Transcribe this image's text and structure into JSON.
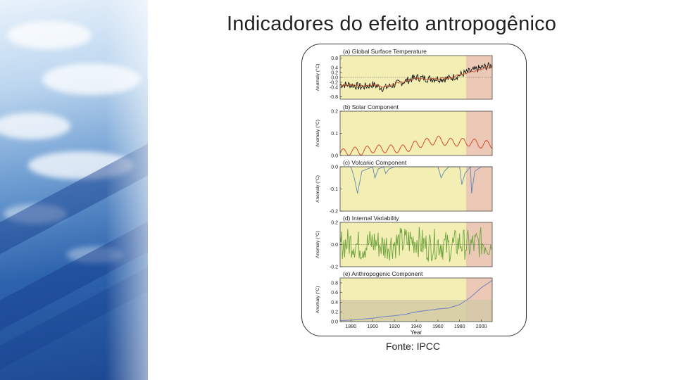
{
  "page": {
    "title": "Indicadores do efeito antropogênico",
    "source": "Fonte: IPCC"
  },
  "colors": {
    "yellow_period": "#f3eeb4",
    "pink_period": "#ecc9b6",
    "observed": "#111111",
    "temperature_fit": "#c8502f",
    "solar": "#d4583a",
    "volcanic": "#5f87b6",
    "internal": "#6da33c",
    "anthropogenic": "#7d86bf",
    "anthro_band": "#cfc7a4"
  },
  "chart_data": [
    {
      "type": "line",
      "panel": "(a) Global Surface Temperature",
      "ylabel": "Anomaly (°C)",
      "ylim": [
        -0.9,
        0.9
      ],
      "yticks": [
        0.8,
        0.4,
        0.2,
        0.0,
        -0.2,
        -0.4,
        -0.8
      ],
      "xlim": [
        1870,
        2010
      ],
      "period_split": 1986,
      "series": [
        {
          "x": [
            1870,
            1880,
            1890,
            1900,
            1910,
            1920,
            1930,
            1940,
            1950,
            1960,
            1970,
            1980,
            1990,
            2000,
            2010
          ],
          "values": [
            -0.3,
            -0.3,
            -0.4,
            -0.3,
            -0.45,
            -0.3,
            -0.15,
            0.0,
            -0.05,
            -0.05,
            -0.05,
            0.1,
            0.25,
            0.4,
            0.5
          ]
        },
        {
          "x": [
            1870,
            1880,
            1890,
            1900,
            1910,
            1920,
            1930,
            1940,
            1950,
            1960,
            1970,
            1980,
            1990,
            2000,
            2010
          ],
          "values": [
            -0.3,
            -0.32,
            -0.35,
            -0.3,
            -0.38,
            -0.28,
            -0.15,
            -0.05,
            -0.07,
            -0.05,
            -0.03,
            0.1,
            0.22,
            0.35,
            0.45
          ]
        }
      ]
    },
    {
      "type": "line",
      "panel": "(b) Solar Component",
      "ylabel": "Anomaly (°C)",
      "ylim": [
        0.0,
        0.2
      ],
      "yticks": [
        0.2,
        0.1,
        0.0
      ],
      "xlim": [
        1870,
        2010
      ],
      "period_split": 1986,
      "series": [
        {
          "x": [
            1870,
            1880,
            1890,
            1900,
            1910,
            1920,
            1930,
            1940,
            1950,
            1960,
            1970,
            1980,
            1990,
            2000,
            2010
          ],
          "values": [
            0.01,
            0.02,
            0.02,
            0.03,
            0.03,
            0.03,
            0.03,
            0.05,
            0.06,
            0.07,
            0.06,
            0.06,
            0.06,
            0.05,
            0.05
          ]
        }
      ]
    },
    {
      "type": "line",
      "panel": "(c) Volcanic Component",
      "ylabel": "Anomaly (°C)",
      "ylim": [
        -0.2,
        0.0
      ],
      "yticks": [
        0.0,
        -0.1,
        -0.2
      ],
      "xlim": [
        1870,
        2010
      ],
      "period_split": 1986,
      "series": [
        {
          "x": [
            1870,
            1875,
            1880,
            1883,
            1886,
            1890,
            1895,
            1900,
            1902,
            1905,
            1910,
            1912,
            1915,
            1920,
            1930,
            1940,
            1950,
            1960,
            1963,
            1966,
            1970,
            1975,
            1980,
            1982,
            1985,
            1990,
            1991,
            1994,
            2000,
            2005,
            2010
          ],
          "values": [
            0.0,
            0.0,
            0.0,
            -0.05,
            -0.12,
            -0.02,
            -0.01,
            0.0,
            -0.05,
            -0.01,
            0.0,
            -0.03,
            -0.01,
            0.0,
            0.0,
            0.0,
            0.0,
            0.0,
            -0.05,
            -0.02,
            0.0,
            0.0,
            0.0,
            -0.08,
            -0.03,
            0.0,
            -0.12,
            -0.02,
            0.0,
            0.0,
            0.0
          ]
        }
      ]
    },
    {
      "type": "line",
      "panel": "(d) Internal Variability",
      "ylabel": "Anomaly (°C)",
      "ylim": [
        -0.2,
        0.2
      ],
      "yticks": [
        0.2,
        0.0,
        -0.2
      ],
      "xlim": [
        1870,
        2010
      ],
      "period_split": 1986,
      "series": [
        {
          "x": [
            1870,
            1880,
            1890,
            1900,
            1910,
            1920,
            1930,
            1940,
            1950,
            1960,
            1970,
            1980,
            1990,
            2000,
            2010
          ],
          "values": [
            0.0,
            0.05,
            -0.05,
            0.06,
            -0.04,
            0.02,
            0.07,
            0.1,
            -0.05,
            0.03,
            -0.06,
            0.04,
            -0.03,
            0.05,
            0.0
          ]
        }
      ]
    },
    {
      "type": "line",
      "panel": "(e) Anthropogenic Component",
      "ylabel": "Anomaly (°C)",
      "ylim": [
        0.0,
        0.9
      ],
      "yticks": [
        0.8,
        0.6,
        0.4,
        0.2,
        0.0
      ],
      "xlabel": "Year",
      "xticks": [
        1880,
        1900,
        1920,
        1940,
        1960,
        1980,
        2000
      ],
      "xlim": [
        1870,
        2010
      ],
      "period_split": 1986,
      "series": [
        {
          "x": [
            1870,
            1880,
            1890,
            1900,
            1910,
            1920,
            1930,
            1940,
            1950,
            1960,
            1970,
            1980,
            1990,
            2000,
            2010
          ],
          "values": [
            0.02,
            0.03,
            0.05,
            0.07,
            0.1,
            0.12,
            0.15,
            0.2,
            0.23,
            0.26,
            0.28,
            0.35,
            0.5,
            0.7,
            0.85
          ]
        }
      ]
    }
  ]
}
